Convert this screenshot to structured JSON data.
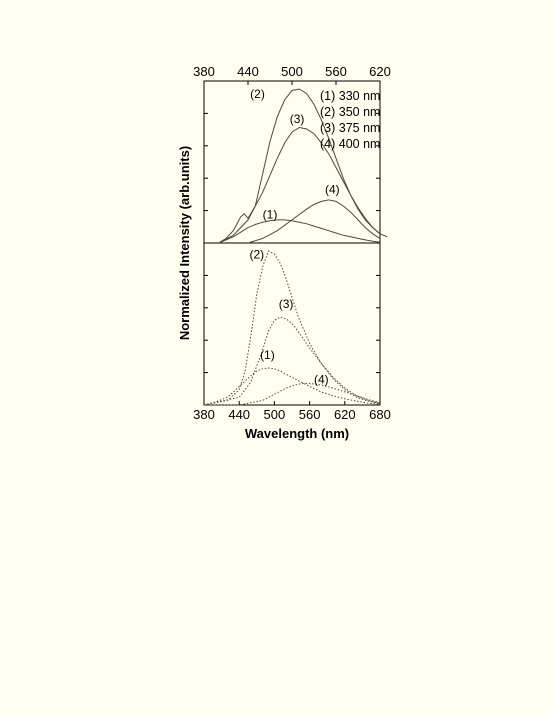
{
  "chart_data": [
    {
      "type": "line",
      "panel": "top",
      "line_style": "solid",
      "xlim": [
        380,
        620
      ],
      "ylim": [
        0,
        1.0
      ],
      "top_axis_ticks": [
        "380",
        "440",
        "500",
        "560",
        "620"
      ],
      "ylabel": "Normalized Intensity (arb.units)",
      "legend": {
        "placement": "top-right",
        "entries": [
          "(1) 330 nm",
          "(2) 350 nm",
          "(3) 375 nm",
          "(4) 400 nm"
        ]
      },
      "series": [
        {
          "name": "(1)",
          "label_text": "(1)",
          "label_at": [
            470,
            0.16
          ],
          "x": [
            400,
            410,
            420,
            430,
            440,
            450,
            460,
            470,
            480,
            490,
            500,
            510,
            520,
            530,
            540,
            550,
            560,
            570,
            580,
            590,
            600,
            610,
            620
          ],
          "y": [
            0.0,
            0.02,
            0.04,
            0.07,
            0.1,
            0.12,
            0.135,
            0.145,
            0.15,
            0.15,
            0.145,
            0.135,
            0.125,
            0.11,
            0.095,
            0.08,
            0.065,
            0.05,
            0.04,
            0.03,
            0.02,
            0.012,
            0.005
          ]
        },
        {
          "name": "(2)",
          "label_text": "(2)",
          "label_at": [
            453,
            0.94
          ],
          "x": [
            400,
            410,
            420,
            430,
            435,
            440,
            450,
            460,
            470,
            480,
            490,
            500,
            510,
            520,
            530,
            540,
            550,
            560,
            570,
            580,
            590,
            600,
            610,
            620,
            630
          ],
          "y": [
            0.0,
            0.03,
            0.08,
            0.17,
            0.19,
            0.16,
            0.24,
            0.45,
            0.66,
            0.82,
            0.93,
            0.99,
            1.0,
            0.97,
            0.9,
            0.8,
            0.68,
            0.55,
            0.42,
            0.31,
            0.22,
            0.15,
            0.1,
            0.06,
            0.04
          ]
        },
        {
          "name": "(3)",
          "label_text": "(3)",
          "label_at": [
            507,
            0.78
          ],
          "x": [
            400,
            420,
            440,
            460,
            480,
            490,
            500,
            510,
            520,
            530,
            540,
            550,
            560,
            570,
            580,
            590,
            600,
            610,
            620
          ],
          "y": [
            0.0,
            0.05,
            0.15,
            0.33,
            0.55,
            0.65,
            0.72,
            0.75,
            0.74,
            0.71,
            0.65,
            0.58,
            0.49,
            0.4,
            0.31,
            0.23,
            0.16,
            0.1,
            0.06
          ]
        },
        {
          "name": "(4)",
          "label_text": "(4)",
          "label_at": [
            555,
            0.32
          ],
          "x": [
            440,
            460,
            480,
            500,
            520,
            530,
            540,
            550,
            560,
            570,
            580,
            590,
            600,
            610,
            620
          ],
          "y": [
            0.0,
            0.03,
            0.08,
            0.15,
            0.22,
            0.25,
            0.27,
            0.28,
            0.27,
            0.24,
            0.2,
            0.15,
            0.1,
            0.06,
            0.03
          ]
        }
      ]
    },
    {
      "type": "line",
      "panel": "bottom",
      "line_style": "dotted",
      "xlim": [
        380,
        680
      ],
      "ylim": [
        0,
        1.0
      ],
      "bottom_axis_ticks": [
        "380",
        "440",
        "500",
        "560",
        "620",
        "680"
      ],
      "xlabel": "Wavelength (nm)",
      "series": [
        {
          "name": "(1)",
          "label_text": "(1)",
          "label_at": [
            488,
            0.3
          ],
          "x": [
            380,
            400,
            420,
            440,
            460,
            470,
            480,
            490,
            500,
            510,
            520,
            540,
            560,
            580,
            600,
            620,
            640,
            660,
            680
          ],
          "y": [
            0.0,
            0.02,
            0.05,
            0.12,
            0.19,
            0.22,
            0.235,
            0.24,
            0.235,
            0.22,
            0.2,
            0.16,
            0.12,
            0.085,
            0.06,
            0.04,
            0.025,
            0.012,
            0.005
          ]
        },
        {
          "name": "(2)",
          "label_text": "(2)",
          "label_at": [
            470,
            0.95
          ],
          "x": [
            380,
            420,
            440,
            450,
            460,
            470,
            480,
            490,
            500,
            510,
            520,
            530,
            540,
            560,
            580,
            600,
            620,
            640,
            660,
            680
          ],
          "y": [
            0.0,
            0.03,
            0.1,
            0.22,
            0.45,
            0.72,
            0.9,
            1.0,
            0.98,
            0.92,
            0.82,
            0.7,
            0.58,
            0.4,
            0.27,
            0.17,
            0.1,
            0.05,
            0.025,
            0.01
          ]
        },
        {
          "name": "(3)",
          "label_text": "(3)",
          "label_at": [
            520,
            0.63
          ],
          "x": [
            380,
            440,
            460,
            480,
            490,
            500,
            510,
            520,
            530,
            540,
            560,
            580,
            600,
            620,
            640,
            660,
            680
          ],
          "y": [
            0.0,
            0.05,
            0.15,
            0.36,
            0.48,
            0.55,
            0.57,
            0.56,
            0.53,
            0.48,
            0.37,
            0.27,
            0.18,
            0.11,
            0.06,
            0.03,
            0.01
          ]
        },
        {
          "name": "(4)",
          "label_text": "(4)",
          "label_at": [
            580,
            0.14
          ],
          "x": [
            380,
            440,
            480,
            500,
            520,
            540,
            550,
            560,
            580,
            600,
            620,
            640,
            660,
            680
          ],
          "y": [
            0.0,
            0.0,
            0.03,
            0.07,
            0.11,
            0.135,
            0.14,
            0.14,
            0.13,
            0.11,
            0.085,
            0.06,
            0.035,
            0.015
          ]
        }
      ]
    }
  ]
}
